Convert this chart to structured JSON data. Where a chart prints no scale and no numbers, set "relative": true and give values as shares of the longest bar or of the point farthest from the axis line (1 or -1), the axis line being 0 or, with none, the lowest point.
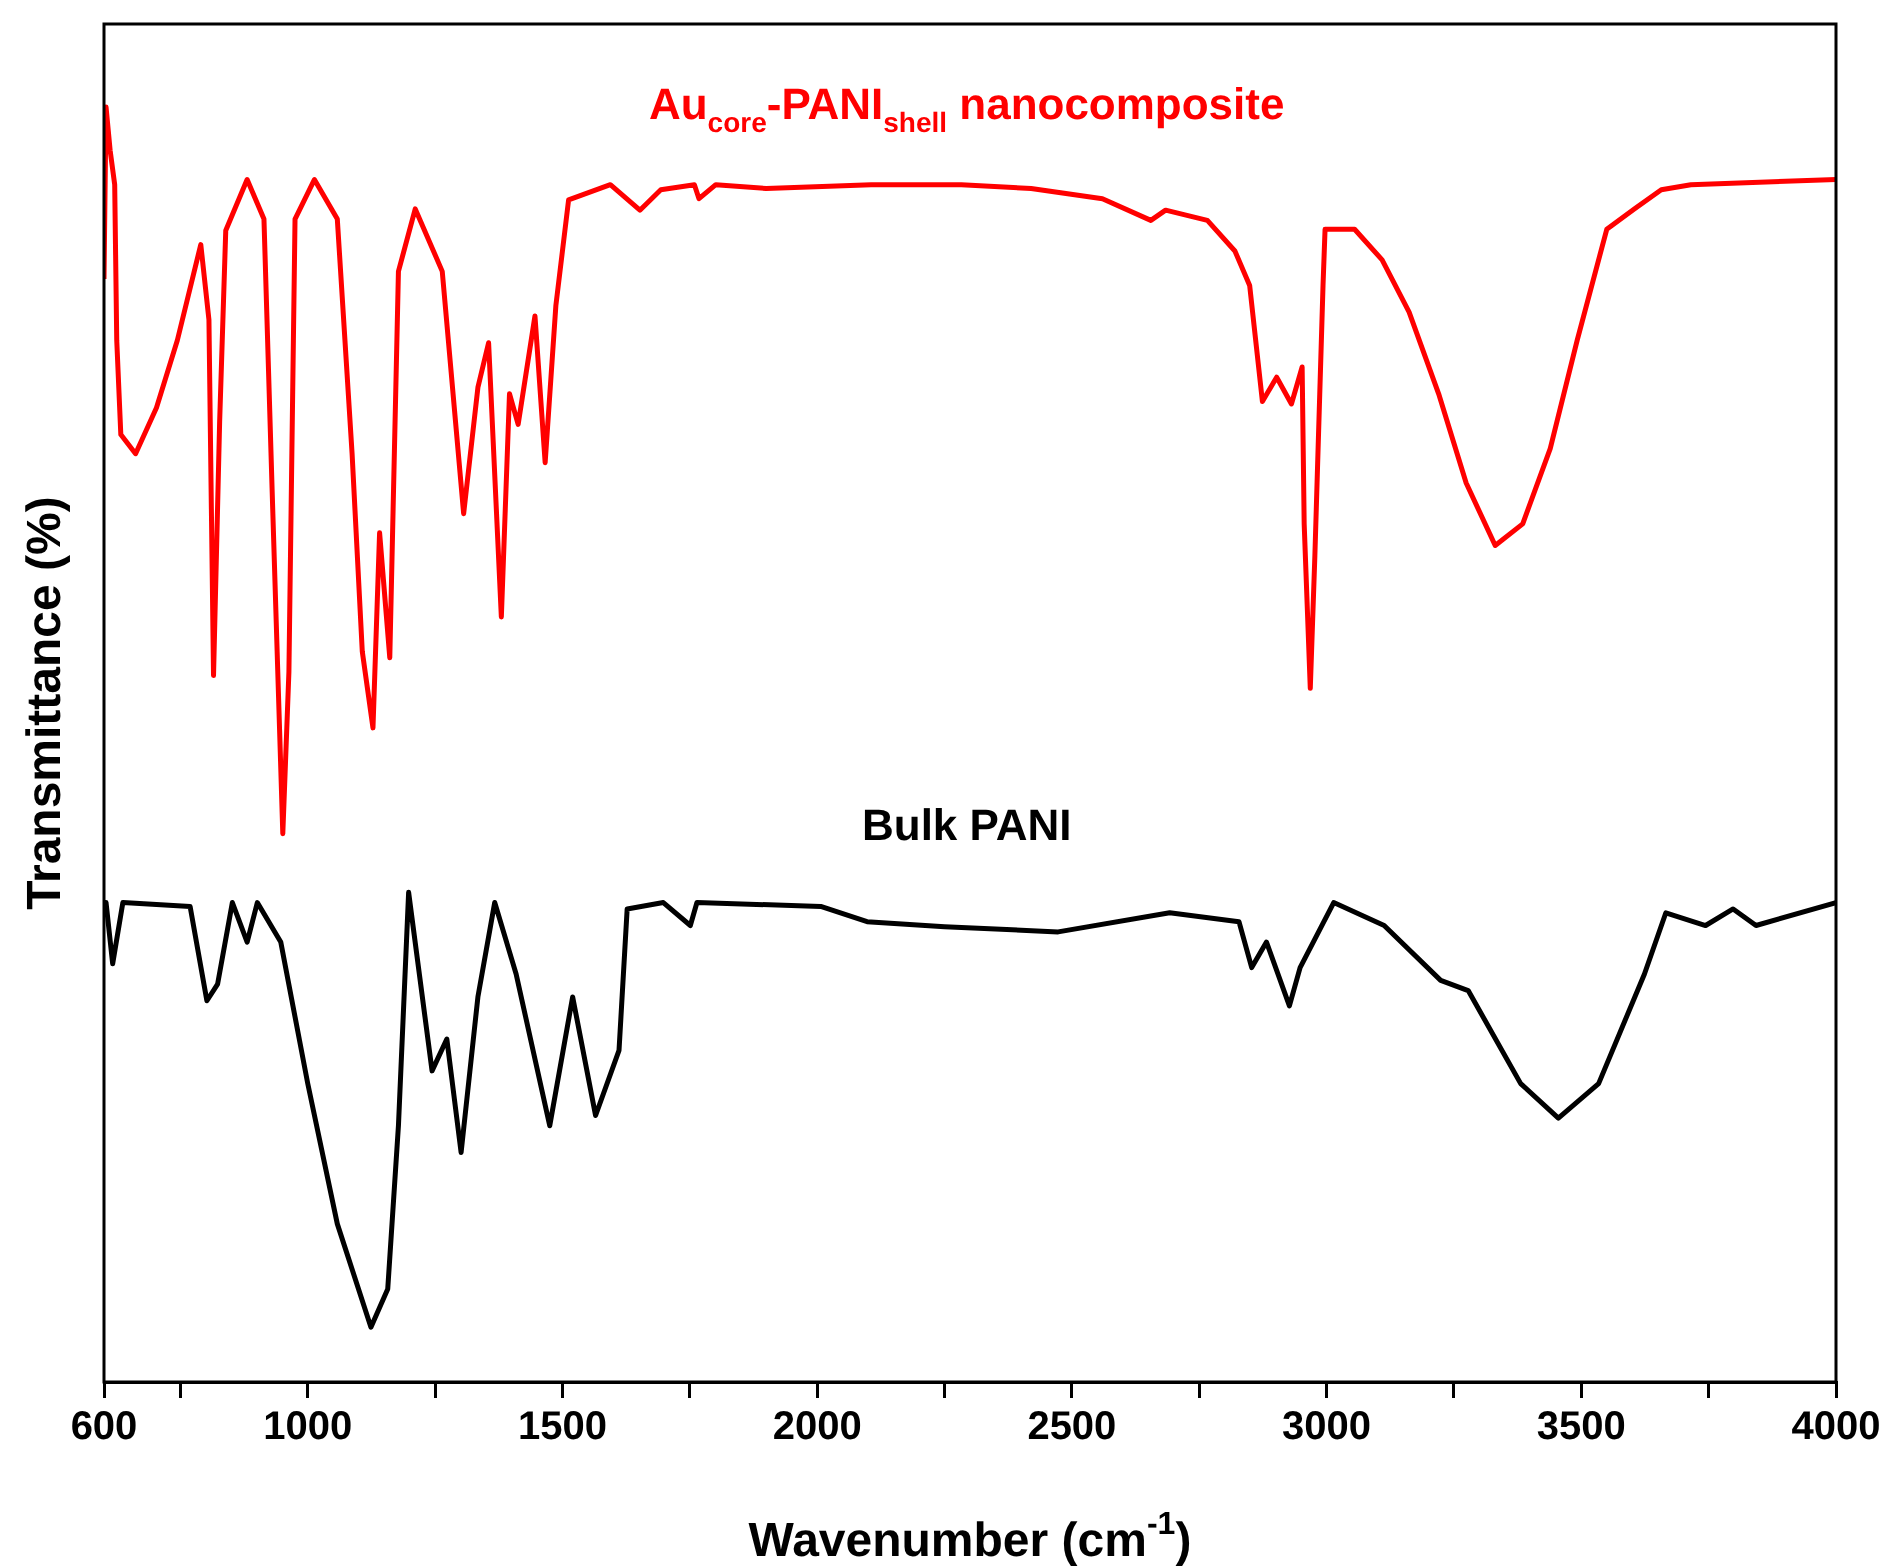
{
  "chart_data": {
    "type": "line",
    "xlabel": "Wavenumber (cm$^{-1}$)",
    "ylabel": "Transmittance (%)",
    "relative": true,
    "grid": false,
    "legend": false,
    "marker": "none",
    "line_style": "solid",
    "xlim": [
      600,
      4000
    ],
    "xticks": [
      600,
      {
        "value": 750,
        "label": null
      },
      1000,
      {
        "value": 1250,
        "label": null
      },
      1500,
      {
        "value": 1750,
        "label": null
      },
      2000,
      {
        "value": 2250,
        "label": null
      },
      2500,
      {
        "value": 2750,
        "label": null
      },
      3000,
      {
        "value": 3250,
        "label": null
      },
      3500,
      {
        "value": 3750,
        "label": null
      },
      4000
    ],
    "series": [
      {
        "name": "Au$_{core}$-PANI$_{shell}$ nanocomposite",
        "color": "#ff0000",
        "x": [
          600,
          604,
          612,
          621,
          625,
          633,
          662,
          703,
          744,
          790,
          806,
          815,
          827,
          839,
          881,
          914,
          930,
          951,
          963,
          975,
          1013,
          1058,
          1087,
          1107,
          1128,
          1141,
          1161,
          1178,
          1211,
          1264,
          1306,
          1334,
          1355,
          1380,
          1396,
          1413,
          1446,
          1466,
          1487,
          1512,
          1594,
          1652,
          1693,
          1759,
          1768,
          1801,
          1900,
          2106,
          2283,
          2420,
          2560,
          2655,
          2684,
          2766,
          2820,
          2849,
          2874,
          2902,
          2931,
          2952,
          2956,
          2968,
          2977,
          2993,
          2997,
          3055,
          3109,
          3162,
          3220,
          3274,
          3331,
          3385,
          3439,
          3492,
          3550,
          3604,
          3657,
          3715,
          4000
        ],
        "values": [
          0.865,
          1.0,
          0.966,
          0.939,
          0.817,
          0.743,
          0.728,
          0.764,
          0.817,
          0.892,
          0.833,
          0.554,
          0.753,
          0.903,
          0.943,
          0.912,
          0.7,
          0.43,
          0.557,
          0.912,
          0.943,
          0.912,
          0.728,
          0.573,
          0.513,
          0.666,
          0.568,
          0.871,
          0.92,
          0.871,
          0.681,
          0.78,
          0.815,
          0.6,
          0.775,
          0.751,
          0.836,
          0.721,
          0.844,
          0.927,
          0.939,
          0.919,
          0.935,
          0.939,
          0.928,
          0.939,
          0.936,
          0.939,
          0.939,
          0.936,
          0.928,
          0.911,
          0.919,
          0.911,
          0.887,
          0.86,
          0.769,
          0.788,
          0.767,
          0.796,
          0.673,
          0.544,
          0.648,
          0.86,
          0.904,
          0.904,
          0.88,
          0.839,
          0.775,
          0.705,
          0.656,
          0.673,
          0.732,
          0.817,
          0.904,
          0.92,
          0.935,
          0.939,
          0.943
        ]
      },
      {
        "name": "Bulk PANI",
        "color": "#000000",
        "x": [
          600,
          604,
          617,
          637,
          769,
          802,
          823,
          852,
          881,
          901,
          947,
          1000,
          1058,
          1124,
          1157,
          1178,
          1198,
          1244,
          1273,
          1301,
          1334,
          1367,
          1409,
          1475,
          1520,
          1565,
          1611,
          1627,
          1698,
          1751,
          1764,
          2007,
          2098,
          2250,
          2473,
          2692,
          2828,
          2853,
          2882,
          2927,
          2948,
          3014,
          3113,
          3224,
          3278,
          3381,
          3455,
          3534,
          3624,
          3666,
          3744,
          3798,
          3843,
          4000
        ],
        "values": [
          0.376,
          0.376,
          0.328,
          0.376,
          0.373,
          0.299,
          0.312,
          0.376,
          0.345,
          0.376,
          0.345,
          0.234,
          0.124,
          0.043,
          0.073,
          0.201,
          0.384,
          0.244,
          0.269,
          0.18,
          0.302,
          0.376,
          0.32,
          0.201,
          0.302,
          0.209,
          0.26,
          0.371,
          0.376,
          0.358,
          0.376,
          0.373,
          0.361,
          0.357,
          0.353,
          0.368,
          0.361,
          0.325,
          0.345,
          0.295,
          0.325,
          0.376,
          0.358,
          0.315,
          0.307,
          0.234,
          0.207,
          0.234,
          0.32,
          0.368,
          0.358,
          0.371,
          0.358,
          0.376
        ]
      }
    ]
  }
}
